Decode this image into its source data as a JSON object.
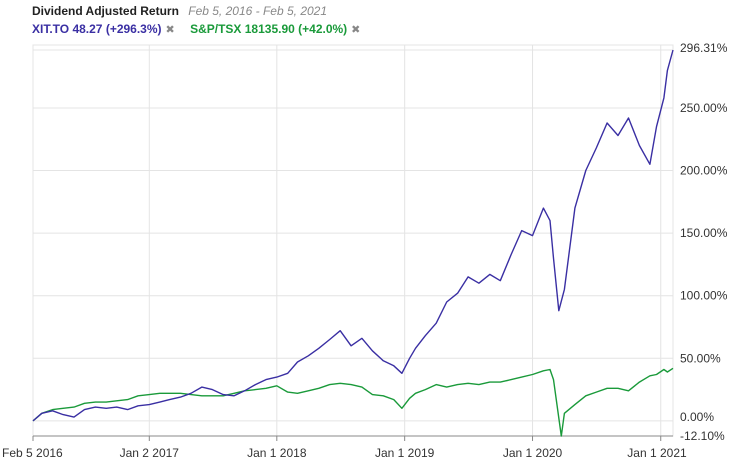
{
  "header": {
    "title": "Dividend Adjusted Return",
    "date_range": "Feb 5, 2016 - Feb 5, 2021"
  },
  "legend": [
    {
      "label": "XIT.TO 48.27 (+296.3%)",
      "color": "#3a2fa3",
      "remove_icon": "close-icon"
    },
    {
      "label": "S&P/TSX 18135.90 (+42.0%)",
      "color": "#1a9a3a",
      "remove_icon": "close-icon"
    }
  ],
  "chart_data": {
    "type": "line",
    "xlim": [
      "2016-02-05",
      "2021-02-05"
    ],
    "ylim": [
      -12.1,
      296.31
    ],
    "x_ticks": [
      {
        "date": "2016-02-05",
        "label": "Feb 5 2016"
      },
      {
        "date": "2017-01-02",
        "label": "Jan 2 2017"
      },
      {
        "date": "2018-01-01",
        "label": "Jan 1 2018"
      },
      {
        "date": "2019-01-01",
        "label": "Jan 1 2019"
      },
      {
        "date": "2020-01-01",
        "label": "Jan 1 2020"
      },
      {
        "date": "2021-01-01",
        "label": "Jan 1 2021"
      }
    ],
    "y_ticks": [
      {
        "value": 296.31,
        "label": "296.31%"
      },
      {
        "value": 250,
        "label": "250.00%"
      },
      {
        "value": 200,
        "label": "200.00%"
      },
      {
        "value": 150,
        "label": "150.00%"
      },
      {
        "value": 100,
        "label": "100.00%"
      },
      {
        "value": 50,
        "label": "50.00%"
      },
      {
        "value": 0,
        "label": "0.00%"
      },
      {
        "value": -12.1,
        "label": "-12.10%"
      }
    ],
    "grid": true,
    "series": [
      {
        "name": "XIT.TO 48.27 (+296.3%)",
        "color": "#3a2fa3",
        "points": [
          [
            "2016-02-05",
            0
          ],
          [
            "2016-03-01",
            6
          ],
          [
            "2016-04-01",
            8
          ],
          [
            "2016-05-01",
            5
          ],
          [
            "2016-06-01",
            3
          ],
          [
            "2016-07-01",
            9
          ],
          [
            "2016-08-01",
            11
          ],
          [
            "2016-09-01",
            10
          ],
          [
            "2016-10-01",
            11
          ],
          [
            "2016-11-01",
            9
          ],
          [
            "2016-12-01",
            12
          ],
          [
            "2017-01-02",
            13
          ],
          [
            "2017-02-01",
            15
          ],
          [
            "2017-03-01",
            17
          ],
          [
            "2017-04-01",
            19
          ],
          [
            "2017-05-01",
            22
          ],
          [
            "2017-06-01",
            27
          ],
          [
            "2017-07-01",
            25
          ],
          [
            "2017-08-01",
            21
          ],
          [
            "2017-09-01",
            20
          ],
          [
            "2017-10-01",
            24
          ],
          [
            "2017-11-01",
            29
          ],
          [
            "2017-12-01",
            33
          ],
          [
            "2018-01-01",
            35
          ],
          [
            "2018-02-01",
            38
          ],
          [
            "2018-03-01",
            47
          ],
          [
            "2018-04-01",
            52
          ],
          [
            "2018-05-01",
            58
          ],
          [
            "2018-06-01",
            65
          ],
          [
            "2018-07-01",
            72
          ],
          [
            "2018-08-01",
            60
          ],
          [
            "2018-09-01",
            66
          ],
          [
            "2018-10-01",
            56
          ],
          [
            "2018-11-01",
            48
          ],
          [
            "2018-12-01",
            44
          ],
          [
            "2018-12-24",
            38
          ],
          [
            "2019-01-15",
            50
          ],
          [
            "2019-02-01",
            58
          ],
          [
            "2019-03-01",
            68
          ],
          [
            "2019-04-01",
            78
          ],
          [
            "2019-05-01",
            95
          ],
          [
            "2019-06-01",
            102
          ],
          [
            "2019-07-01",
            115
          ],
          [
            "2019-08-01",
            110
          ],
          [
            "2019-09-01",
            117
          ],
          [
            "2019-10-01",
            112
          ],
          [
            "2019-11-01",
            133
          ],
          [
            "2019-12-01",
            152
          ],
          [
            "2020-01-01",
            148
          ],
          [
            "2020-02-01",
            170
          ],
          [
            "2020-02-20",
            160
          ],
          [
            "2020-03-01",
            130
          ],
          [
            "2020-03-16",
            88
          ],
          [
            "2020-04-01",
            105
          ],
          [
            "2020-05-01",
            170
          ],
          [
            "2020-06-01",
            200
          ],
          [
            "2020-07-01",
            218
          ],
          [
            "2020-08-01",
            238
          ],
          [
            "2020-09-01",
            228
          ],
          [
            "2020-10-01",
            242
          ],
          [
            "2020-11-01",
            220
          ],
          [
            "2020-12-01",
            205
          ],
          [
            "2020-12-20",
            235
          ],
          [
            "2021-01-10",
            258
          ],
          [
            "2021-01-20",
            280
          ],
          [
            "2021-02-05",
            296.31
          ]
        ]
      },
      {
        "name": "S&P/TSX 18135.90 (+42.0%)",
        "color": "#1a9a3a",
        "points": [
          [
            "2016-02-05",
            0
          ],
          [
            "2016-03-01",
            6
          ],
          [
            "2016-04-01",
            9
          ],
          [
            "2016-05-01",
            10
          ],
          [
            "2016-06-01",
            11
          ],
          [
            "2016-07-01",
            14
          ],
          [
            "2016-08-01",
            15
          ],
          [
            "2016-09-01",
            15
          ],
          [
            "2016-10-01",
            16
          ],
          [
            "2016-11-01",
            17
          ],
          [
            "2016-12-01",
            20
          ],
          [
            "2017-01-02",
            21
          ],
          [
            "2017-02-01",
            22
          ],
          [
            "2017-03-01",
            22
          ],
          [
            "2017-04-01",
            22
          ],
          [
            "2017-05-01",
            21
          ],
          [
            "2017-06-01",
            20
          ],
          [
            "2017-07-01",
            20
          ],
          [
            "2017-08-01",
            20
          ],
          [
            "2017-09-01",
            22
          ],
          [
            "2017-10-01",
            24
          ],
          [
            "2017-11-01",
            25
          ],
          [
            "2017-12-01",
            26
          ],
          [
            "2018-01-01",
            28
          ],
          [
            "2018-02-01",
            23
          ],
          [
            "2018-03-01",
            22
          ],
          [
            "2018-04-01",
            24
          ],
          [
            "2018-05-01",
            26
          ],
          [
            "2018-06-01",
            29
          ],
          [
            "2018-07-01",
            30
          ],
          [
            "2018-08-01",
            29
          ],
          [
            "2018-09-01",
            27
          ],
          [
            "2018-10-01",
            21
          ],
          [
            "2018-11-01",
            20
          ],
          [
            "2018-12-01",
            17
          ],
          [
            "2018-12-24",
            10
          ],
          [
            "2019-01-15",
            18
          ],
          [
            "2019-02-01",
            22
          ],
          [
            "2019-03-01",
            25
          ],
          [
            "2019-04-01",
            29
          ],
          [
            "2019-05-01",
            27
          ],
          [
            "2019-06-01",
            29
          ],
          [
            "2019-07-01",
            30
          ],
          [
            "2019-08-01",
            29
          ],
          [
            "2019-09-01",
            31
          ],
          [
            "2019-10-01",
            31
          ],
          [
            "2019-11-01",
            33
          ],
          [
            "2019-12-01",
            35
          ],
          [
            "2020-01-01",
            37
          ],
          [
            "2020-02-01",
            40
          ],
          [
            "2020-02-20",
            41
          ],
          [
            "2020-03-01",
            33
          ],
          [
            "2020-03-23",
            -12.1
          ],
          [
            "2020-04-01",
            6
          ],
          [
            "2020-05-01",
            13
          ],
          [
            "2020-06-01",
            20
          ],
          [
            "2020-07-01",
            23
          ],
          [
            "2020-08-01",
            26
          ],
          [
            "2020-09-01",
            26
          ],
          [
            "2020-10-01",
            24
          ],
          [
            "2020-11-01",
            31
          ],
          [
            "2020-12-01",
            36
          ],
          [
            "2020-12-20",
            37
          ],
          [
            "2021-01-10",
            41
          ],
          [
            "2021-01-20",
            39
          ],
          [
            "2021-02-05",
            42
          ]
        ]
      }
    ]
  }
}
